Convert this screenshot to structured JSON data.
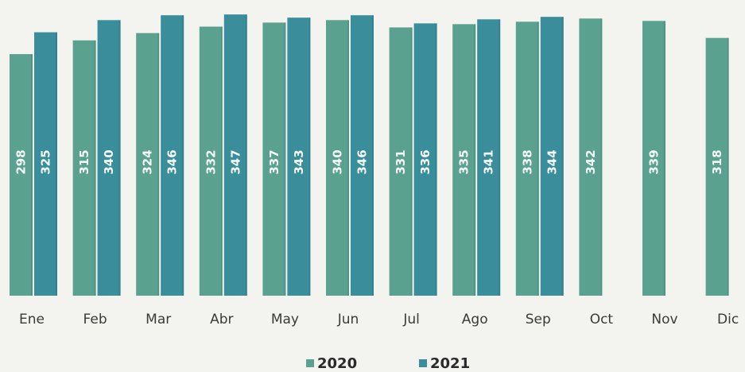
{
  "chart_data": {
    "type": "bar",
    "categories": [
      "Ene",
      "Feb",
      "Mar",
      "Abr",
      "May",
      "Jun",
      "Jul",
      "Ago",
      "Sep",
      "Oct",
      "Nov",
      "Dic"
    ],
    "series": [
      {
        "name": "2020",
        "color": "#5aa18f",
        "values": [
          298,
          315,
          324,
          332,
          337,
          340,
          331,
          335,
          338,
          342,
          339,
          318
        ]
      },
      {
        "name": "2021",
        "color": "#3a8d9b",
        "values": [
          325,
          340,
          346,
          347,
          343,
          346,
          336,
          341,
          344,
          null,
          null,
          null
        ]
      }
    ],
    "title": "",
    "xlabel": "",
    "ylabel": "",
    "ylim": [
      0,
      355
    ],
    "grid": false,
    "legend_position": "bottom-center"
  }
}
